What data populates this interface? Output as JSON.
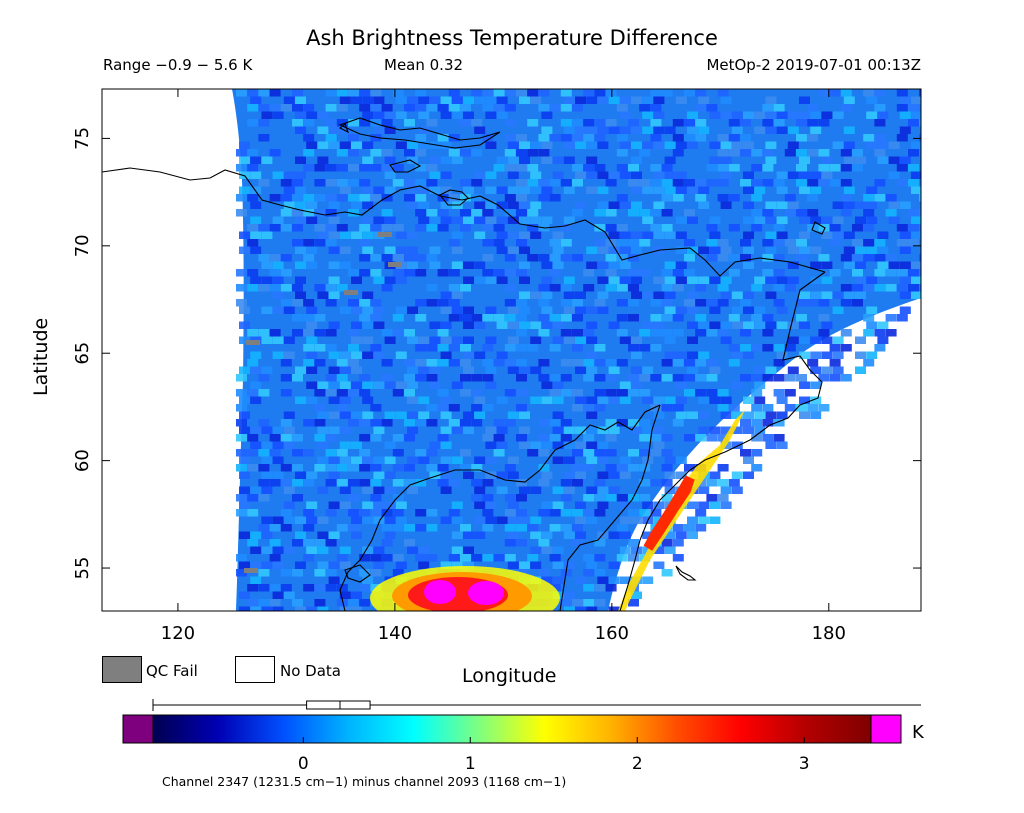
{
  "header": {
    "title": "Ash Brightness Temperature Difference",
    "range": "Range −0.9 − 5.6 K",
    "mean": "Mean 0.32",
    "satellite_time": "MetOp-2 2019-07-01 00:13Z"
  },
  "map": {
    "x_axis_label": "Longitude",
    "y_axis_label": "Latitude",
    "lon_range": [
      113,
      188.5
    ],
    "lat_range": [
      53,
      77.3
    ],
    "x_ticks": [
      120,
      140,
      160,
      180
    ],
    "y_ticks": [
      55,
      60,
      65,
      70,
      75
    ],
    "background_no_data": "#ffffff"
  },
  "legend": {
    "qc_fail_label": "QC Fail",
    "no_data_label": "No Data",
    "qc_fail_color": "#7f7f7f",
    "no_data_color": "#ffffff"
  },
  "colorbar": {
    "unit": "K",
    "ticks": [
      0,
      1,
      2,
      3
    ],
    "min": -0.9,
    "max": 3.4,
    "under_color": "#7f007f",
    "over_color": "#ff00ff",
    "stops": [
      "#000050",
      "#0000b4",
      "#0050ff",
      "#00b4ff",
      "#00ffff",
      "#7fff7f",
      "#ffff00",
      "#ffb400",
      "#ff5000",
      "#ff0000",
      "#b40000",
      "#7f0000"
    ],
    "boxplot": {
      "min": -0.9,
      "q1": 0.02,
      "median": 0.22,
      "q3": 0.4,
      "max": 5.6
    }
  },
  "footer": {
    "channel_text": "Channel 2347 (1231.5 cm−1) minus channel 2093 (1168 cm−1)"
  }
}
